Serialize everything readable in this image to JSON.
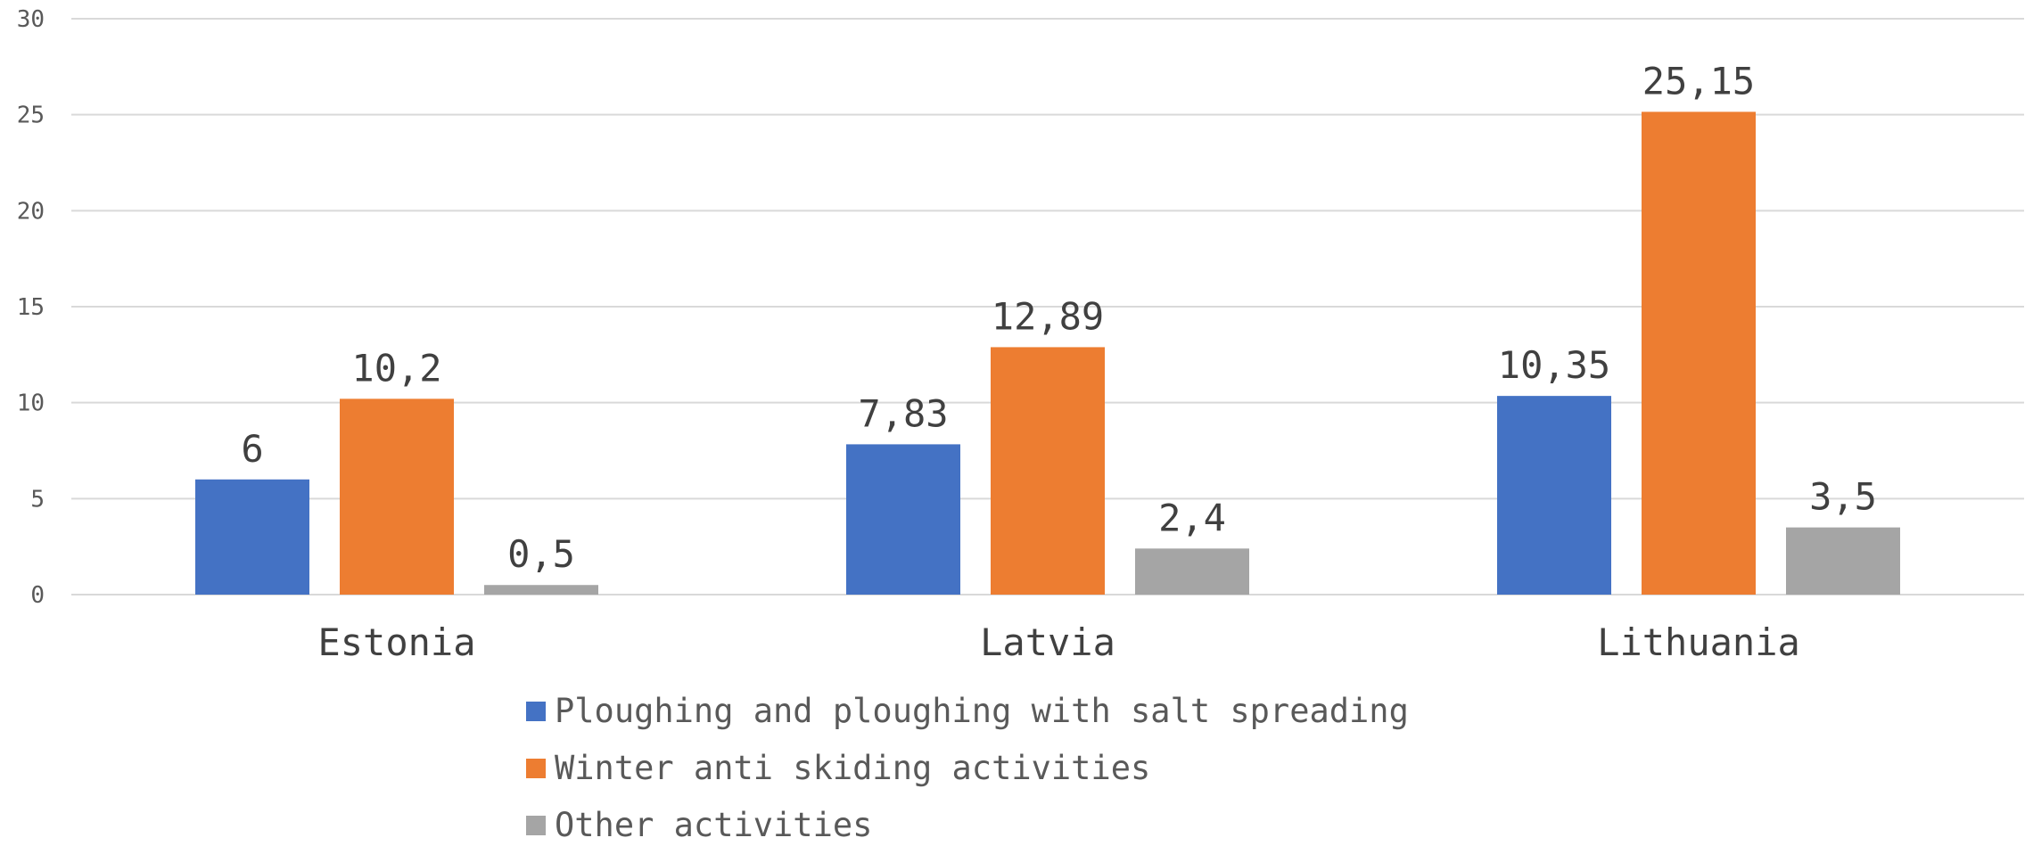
{
  "chart_data": {
    "type": "bar",
    "title": "",
    "xlabel": "",
    "ylabel": "",
    "categories": [
      "Estonia",
      "Latvia",
      "Lithuania"
    ],
    "series": [
      {
        "name": "Ploughing and ploughing with salt spreading",
        "values": [
          6,
          7.83,
          10.35
        ],
        "labels": [
          "6",
          "7,83",
          "10,35"
        ],
        "color": "#4472C4"
      },
      {
        "name": "Winter anti skiding activities",
        "values": [
          10.2,
          12.89,
          25.15
        ],
        "labels": [
          "10,2",
          "12,89",
          "25,15"
        ],
        "color": "#ED7D31"
      },
      {
        "name": "Other activities",
        "values": [
          0.5,
          2.4,
          3.5
        ],
        "labels": [
          "0,5",
          "2,4",
          "3,5"
        ],
        "color": "#A5A5A5"
      }
    ],
    "ylim": [
      0,
      30
    ],
    "yticks": [
      "0",
      "5",
      "10",
      "15",
      "20",
      "25",
      "30"
    ],
    "grid": true,
    "legend_position": "bottom"
  }
}
